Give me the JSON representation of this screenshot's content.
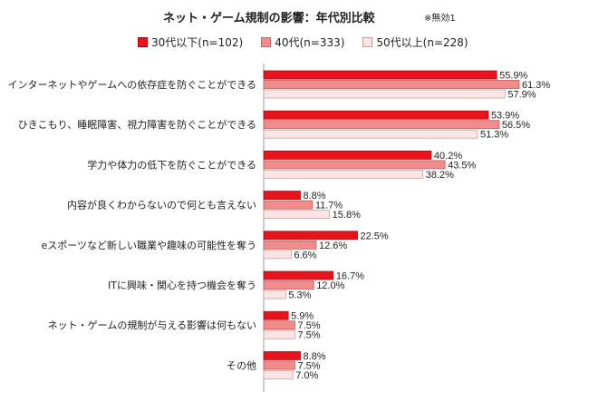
{
  "chart_data": {
    "type": "bar",
    "orientation": "horizontal",
    "title": "ネット・ゲーム規制の影響：年代別比較",
    "note": "※無効1",
    "categories": [
      "インターネットやゲームへの依存症を防ぐことができる",
      "ひきこもり、睡眠障害、視力障害を防ぐことができる",
      "学力や体力の低下を防ぐことができる",
      "内容が良くわからないので何とも言えない",
      "eスポーツなど新しい職業や趣味の可能性を奪う",
      "ITに興味・関心を持つ機会を奪う",
      "ネット・ゲームの規制が与える影響は何もない",
      "その他"
    ],
    "series": [
      {
        "name": "30代以下(n=102)",
        "values": [
          55.9,
          53.9,
          40.2,
          8.8,
          22.5,
          16.7,
          5.9,
          8.8
        ],
        "color": "#e8141c"
      },
      {
        "name": "40代(n=333)",
        "values": [
          61.3,
          56.5,
          43.5,
          11.7,
          12.6,
          12.0,
          7.5,
          7.5
        ],
        "color": "#f08c8c"
      },
      {
        "name": "50代以上(n=228)",
        "values": [
          57.9,
          51.3,
          38.2,
          15.8,
          6.6,
          5.3,
          7.5,
          7.0
        ],
        "color": "#fbe4e4"
      }
    ],
    "value_suffix": "%",
    "xlim": [
      0,
      70
    ],
    "grid": false,
    "legend_position": "top"
  }
}
